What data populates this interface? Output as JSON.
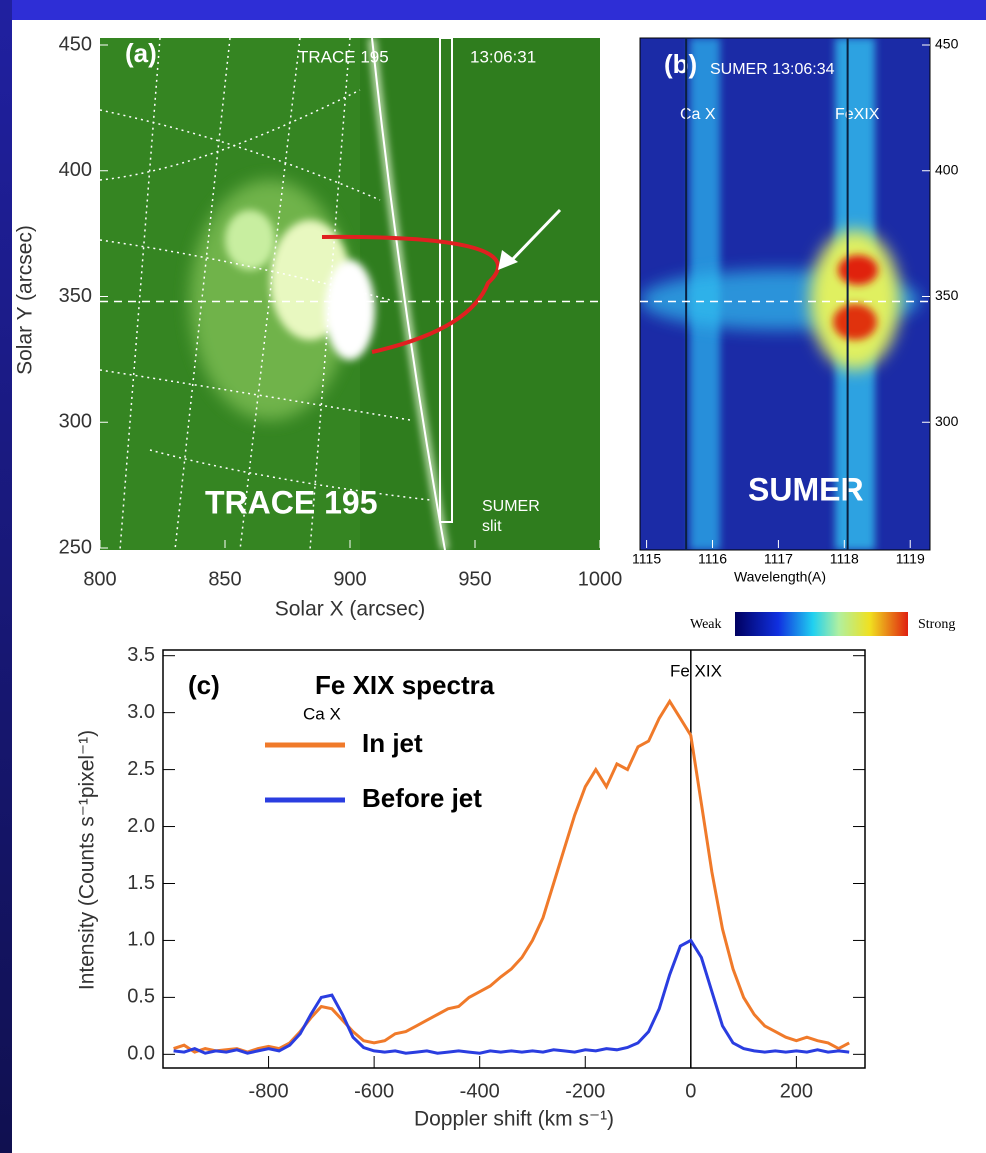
{
  "chart_data": [
    {
      "type": "image",
      "panel_label": "(a)",
      "title": "TRACE 195",
      "time": "13:06:31",
      "overlay_label": "TRACE 195",
      "slit_label": "SUMER",
      "slit_label2": "slit",
      "xlabel": "Solar X  (arcsec)",
      "ylabel": "Solar Y (arcsec)",
      "xlim": [
        800,
        1000
      ],
      "xticks": [
        800,
        850,
        900,
        950,
        1000
      ],
      "ylim": [
        250,
        450
      ],
      "yticks": [
        250,
        300,
        350,
        400,
        450
      ],
      "hline": 348
    },
    {
      "type": "image",
      "panel_label": "(b)",
      "title": "SUMER 13:06:34",
      "overlay_label": "SUMER",
      "line_labels": [
        "Ca X",
        "FeXIX"
      ],
      "line_positions": [
        1115.6,
        1118.05
      ],
      "xlabel": "Wavelength(A)",
      "xlim": [
        1114.9,
        1119.3
      ],
      "xticks": [
        1115,
        1116,
        1117,
        1118,
        1119
      ],
      "ylim": [
        250,
        450
      ],
      "yticks": [
        300,
        350,
        400,
        450
      ],
      "hline": 348,
      "colorbar_labels": [
        "Weak",
        "Strong"
      ]
    },
    {
      "type": "line",
      "panel_label": "(c)",
      "title": "Fe XIX spectra",
      "xlabel": "Doppler shift (km s⁻¹)",
      "ylabel": "Intensity (Counts s⁻¹pixel⁻¹)",
      "annotations": [
        "Fe XIX",
        "Ca X"
      ],
      "vline": 0,
      "xlim": [
        -1000,
        330
      ],
      "xticks": [
        -800,
        -600,
        -400,
        -200,
        0,
        200
      ],
      "ylim": [
        -0.12,
        3.55
      ],
      "yticks": [
        {
          "value": 0,
          "label": "0.0"
        },
        0.5,
        {
          "value": 1,
          "label": "1.0"
        },
        1.5,
        {
          "value": 2,
          "label": "2.0"
        },
        2.5,
        {
          "value": 3,
          "label": "3.0"
        },
        3.5
      ],
      "x": [
        -980,
        -960,
        -940,
        -920,
        -900,
        -880,
        -860,
        -840,
        -820,
        -800,
        -780,
        -760,
        -740,
        -720,
        -700,
        -680,
        -660,
        -640,
        -620,
        -600,
        -580,
        -560,
        -540,
        -520,
        -500,
        -480,
        -460,
        -440,
        -420,
        -400,
        -380,
        -360,
        -340,
        -320,
        -300,
        -280,
        -260,
        -240,
        -220,
        -200,
        -180,
        -160,
        -140,
        -120,
        -100,
        -80,
        -60,
        -40,
        -20,
        0,
        20,
        40,
        60,
        80,
        100,
        120,
        140,
        160,
        180,
        200,
        220,
        240,
        260,
        280,
        300
      ],
      "series": [
        {
          "name": "In jet",
          "color": "#f07a2a",
          "values": [
            0.05,
            0.08,
            0.02,
            0.05,
            0.03,
            0.04,
            0.05,
            0.02,
            0.05,
            0.07,
            0.05,
            0.1,
            0.2,
            0.32,
            0.42,
            0.4,
            0.3,
            0.2,
            0.12,
            0.1,
            0.12,
            0.18,
            0.2,
            0.25,
            0.3,
            0.35,
            0.4,
            0.42,
            0.5,
            0.55,
            0.6,
            0.68,
            0.75,
            0.85,
            1.0,
            1.2,
            1.5,
            1.8,
            2.1,
            2.35,
            2.5,
            2.35,
            2.55,
            2.5,
            2.7,
            2.75,
            2.95,
            3.1,
            2.95,
            2.8,
            2.2,
            1.6,
            1.1,
            0.75,
            0.5,
            0.35,
            0.25,
            0.2,
            0.15,
            0.12,
            0.15,
            0.12,
            0.1,
            0.05,
            0.1
          ]
        },
        {
          "name": "Before jet",
          "color": "#2a3de0",
          "values": [
            0.03,
            0.02,
            0.05,
            0.01,
            0.03,
            0.02,
            0.04,
            0.01,
            0.03,
            0.05,
            0.03,
            0.08,
            0.18,
            0.35,
            0.5,
            0.52,
            0.35,
            0.15,
            0.06,
            0.03,
            0.02,
            0.03,
            0.01,
            0.02,
            0.03,
            0.01,
            0.02,
            0.03,
            0.02,
            0.01,
            0.03,
            0.02,
            0.03,
            0.02,
            0.03,
            0.02,
            0.04,
            0.03,
            0.02,
            0.04,
            0.03,
            0.05,
            0.04,
            0.06,
            0.1,
            0.2,
            0.4,
            0.7,
            0.95,
            1.0,
            0.85,
            0.55,
            0.25,
            0.1,
            0.05,
            0.03,
            0.02,
            0.03,
            0.02,
            0.03,
            0.02,
            0.04,
            0.02,
            0.03,
            0.02
          ]
        }
      ]
    }
  ]
}
